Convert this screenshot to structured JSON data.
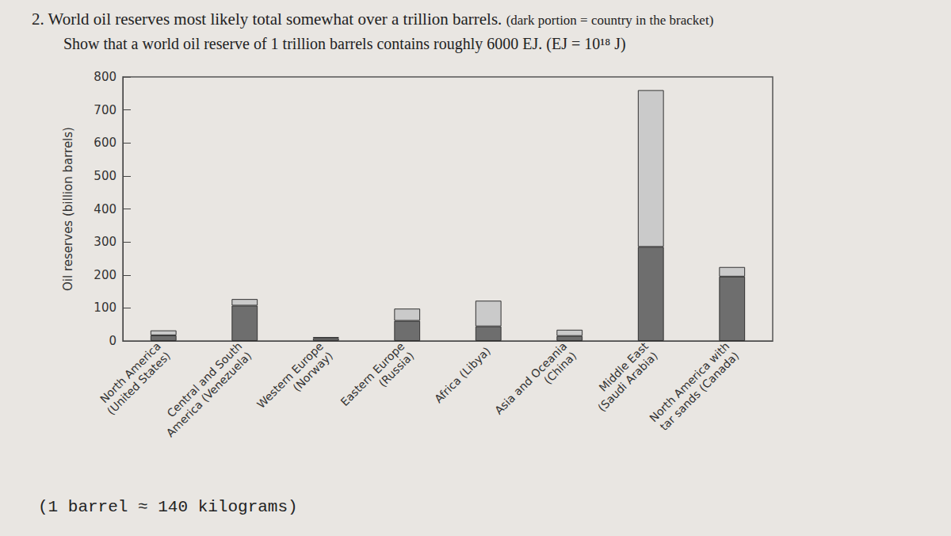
{
  "question": {
    "number": "2.",
    "line1": "World oil reserves most likely total somewhat over a trillion barrels.",
    "line1_note": "(dark portion = country in the bracket)",
    "line2": "Show that a world oil reserve of 1 trillion barrels contains roughly 6000 EJ. (EJ = 10¹⁸ J)"
  },
  "note": "(1 barrel ≈ 140 kilograms)",
  "chart_data": {
    "type": "bar",
    "stacked": true,
    "y_label": "Oil reserves (billion barrels)",
    "categories": [
      "North America\n(United States)",
      "Central and South\nAmerica (Venezuela)",
      "Western Europe\n(Norway)",
      "Eastern Europe\n(Russia)",
      "Africa (Libya)",
      "Asia and Oceania\n(China)",
      "Middle East\n(Saudi Arabia)",
      "North America with\ntar sands (Canada)"
    ],
    "series": [
      {
        "color": "#6e6e6e",
        "values": [
          17,
          107,
          8,
          61,
          44,
          15,
          285,
          195
        ]
      },
      {
        "color": "#cacaca",
        "values": [
          15,
          20,
          4,
          37,
          78,
          19,
          475,
          29
        ]
      }
    ],
    "ylim": [
      0,
      800
    ],
    "yticks": [
      0,
      100,
      200,
      300,
      400,
      500,
      600,
      700,
      800
    ],
    "grid": false
  }
}
